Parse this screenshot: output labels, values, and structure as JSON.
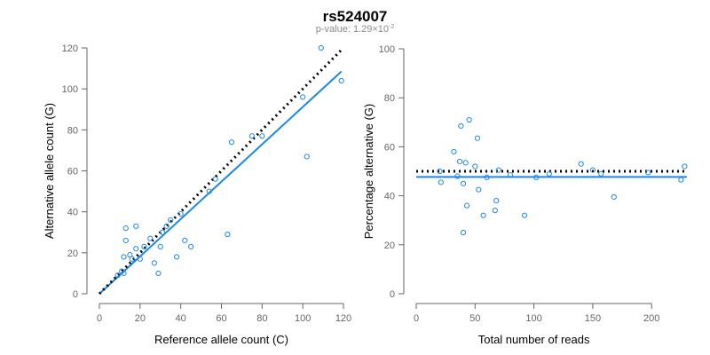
{
  "title": "rs524007",
  "subtitle": {
    "prefix": "p-value: 1.29×10",
    "exponent": "-2"
  },
  "colors": {
    "points": "#1e88e5",
    "fit_line": "#1e88e5",
    "reference_line": "#000000",
    "axis": "#666666"
  },
  "chart_data": [
    {
      "type": "scatter",
      "title": "",
      "xlabel": "Reference allele count (C)",
      "ylabel": "Alternative allele count (G)",
      "xlim": [
        0,
        120
      ],
      "ylim": [
        0,
        120
      ],
      "xticks": [
        0,
        20,
        40,
        60,
        80,
        100,
        120
      ],
      "yticks": [
        0,
        20,
        40,
        60,
        80,
        100,
        120
      ],
      "grid": false,
      "series": [
        {
          "x": [
            9,
            11,
            12,
            12,
            13,
            13,
            15,
            16,
            18,
            18,
            20,
            22,
            25,
            27,
            29,
            30,
            31,
            33,
            35,
            38,
            40,
            42,
            45,
            54,
            57,
            63,
            65,
            75,
            80,
            100,
            102,
            109,
            119
          ],
          "y": [
            9,
            11,
            10,
            18,
            26,
            32,
            19,
            17,
            22,
            33,
            17,
            23,
            27,
            15,
            10,
            23,
            30,
            33,
            36,
            18,
            39,
            26,
            23,
            50,
            56,
            29,
            74,
            77,
            77,
            96,
            67,
            120,
            104
          ]
        }
      ],
      "lines": [
        {
          "kind": "fit",
          "style": "solid",
          "x": [
            0,
            119
          ],
          "y": [
            0,
            108.5
          ]
        },
        {
          "kind": "reference",
          "style": "dotted",
          "x": [
            0,
            119
          ],
          "y": [
            0,
            119
          ]
        }
      ]
    },
    {
      "type": "scatter",
      "title": "",
      "xlabel": "Total number of reads",
      "ylabel": "Percentage alternative (G)",
      "xlim": [
        0,
        230
      ],
      "ylim": [
        0,
        100
      ],
      "xticks": [
        0,
        50,
        100,
        150,
        200
      ],
      "yticks": [
        0,
        20,
        40,
        60,
        80,
        100
      ],
      "grid": false,
      "series": [
        {
          "x": [
            20,
            21,
            32,
            35,
            37,
            38,
            40,
            40,
            42,
            43,
            45,
            50,
            52,
            53,
            57,
            60,
            67,
            68,
            70,
            80,
            92,
            102,
            113,
            140,
            150,
            157,
            168,
            197,
            225,
            228
          ],
          "y": [
            50,
            45.5,
            58,
            48,
            54,
            68.5,
            45,
            25,
            53.5,
            36,
            71,
            52,
            63.5,
            42.5,
            32,
            47.5,
            34,
            38,
            50.5,
            48.5,
            32,
            47.5,
            49,
            53,
            50.5,
            49,
            39.5,
            49.5,
            46.5,
            52
          ]
        }
      ],
      "lines": [
        {
          "kind": "fit",
          "style": "solid",
          "x": [
            0,
            230
          ],
          "y": [
            47.7,
            47.7
          ]
        },
        {
          "kind": "reference",
          "style": "dotted",
          "x": [
            0,
            230
          ],
          "y": [
            50,
            50
          ]
        }
      ]
    }
  ]
}
